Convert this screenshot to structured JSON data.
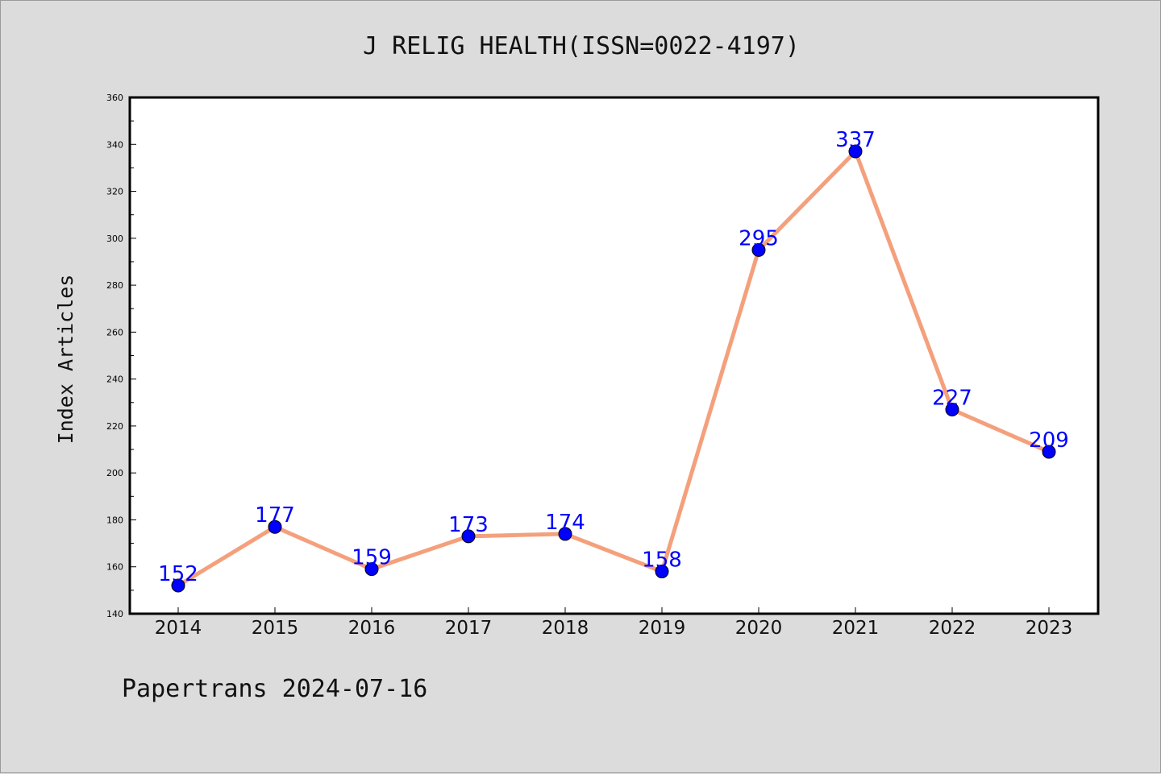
{
  "chart_data": {
    "type": "line",
    "title": "J RELIG HEALTH(ISSN=0022-4197)",
    "xlabel": "",
    "ylabel": "Index Articles",
    "categories": [
      "2014",
      "2015",
      "2016",
      "2017",
      "2018",
      "2019",
      "2020",
      "2021",
      "2022",
      "2023"
    ],
    "series": [
      {
        "values": [
          152,
          177,
          159,
          173,
          174,
          158,
          295,
          337,
          227,
          209
        ]
      }
    ],
    "ylim": [
      140,
      360
    ],
    "yticks": [
      140,
      160,
      180,
      200,
      220,
      240,
      260,
      280,
      300,
      320,
      340,
      360
    ],
    "grid": false,
    "data_labels": true,
    "colors": {
      "line": "#f4a07c",
      "marker": "#0000ff",
      "label": "#0000ff",
      "background": "#dcdcdc",
      "plot_background": "#ffffff"
    }
  },
  "footer": "Papertrans 2024-07-16"
}
